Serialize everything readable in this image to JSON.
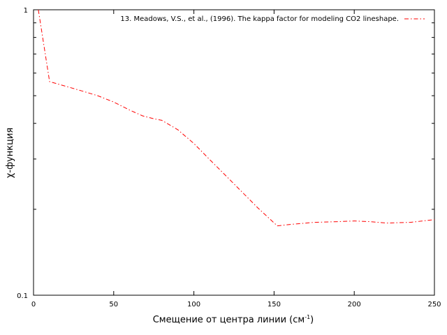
{
  "chart_data": {
    "type": "line",
    "title": "",
    "xlabel": "Смещение от центра линии (см",
    "xlabel_sup": "-1",
    "xlabel_end": ")",
    "ylabel": "χ-функция",
    "xlim": [
      0,
      250
    ],
    "ylim": [
      0.1,
      1
    ],
    "yscale": "log",
    "grid": false,
    "legend_position": "top-right",
    "x_ticks": [
      0,
      50,
      100,
      150,
      200,
      250
    ],
    "x_tick_labels": [
      "0",
      "50",
      "100",
      "150",
      "200",
      "250"
    ],
    "y_ticks": [
      0.1,
      1
    ],
    "y_tick_labels": [
      "0.1",
      "1"
    ],
    "series": [
      {
        "name": "13. Meadows, V.S., et al., (1996). The kappa factor  for modeling CO2 lineshape.",
        "color": "#ff0000",
        "line_style": "dash-dot",
        "x": [
          3,
          10,
          20,
          30,
          40,
          50,
          60,
          68,
          75,
          80,
          90,
          100,
          110,
          120,
          130,
          140,
          152,
          160,
          175,
          190,
          200,
          210,
          220,
          235,
          250
        ],
        "y": [
          1.0,
          0.56,
          0.54,
          0.52,
          0.5,
          0.475,
          0.445,
          0.425,
          0.415,
          0.41,
          0.38,
          0.34,
          0.298,
          0.262,
          0.23,
          0.202,
          0.175,
          0.177,
          0.18,
          0.181,
          0.182,
          0.181,
          0.179,
          0.18,
          0.184
        ]
      }
    ]
  }
}
